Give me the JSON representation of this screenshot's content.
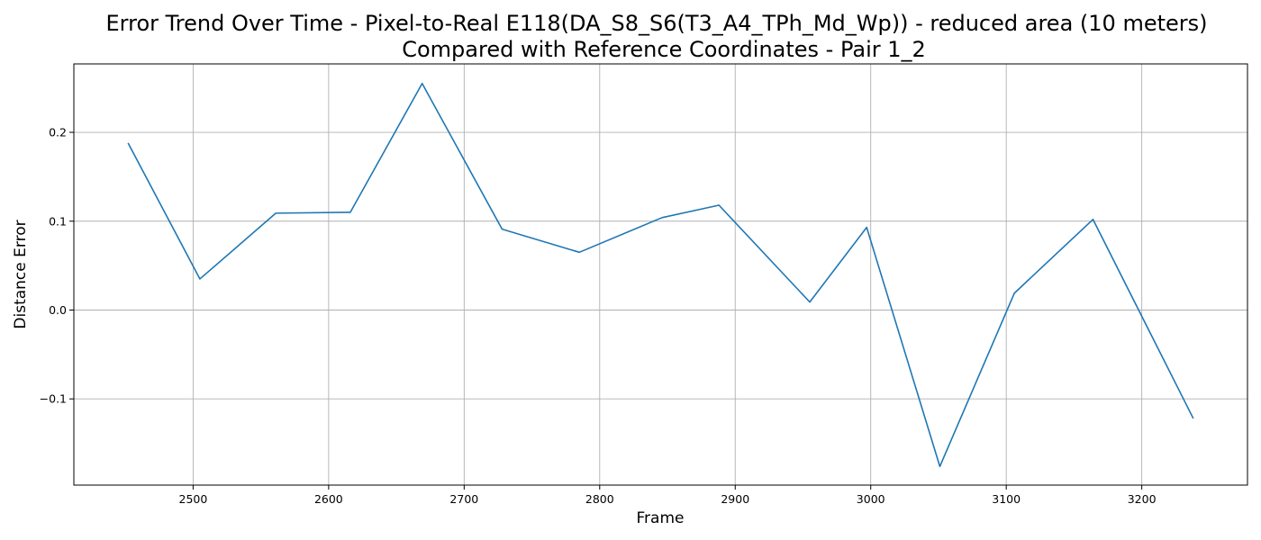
{
  "chart_data": {
    "type": "line",
    "title_lines": [
      "Error Trend Over Time - Pixel-to-Real E118(DA_S8_S6(T3_A4_TPh_Md_Wp)) - reduced area (10 meters)",
      "Compared with Reference Coordinates - Pair 1_2"
    ],
    "xlabel": "Frame",
    "ylabel": "Distance Error",
    "xlim": [
      2412,
      3278
    ],
    "ylim": [
      -0.197,
      0.277
    ],
    "x_ticks": [
      2500,
      2600,
      2700,
      2800,
      2900,
      3000,
      3100,
      3200
    ],
    "x_tick_labels": [
      "2500",
      "2600",
      "2700",
      "2800",
      "2900",
      "3000",
      "3100",
      "3200"
    ],
    "y_ticks": [
      -0.1,
      0.0,
      0.1,
      0.2
    ],
    "y_tick_labels": [
      "−0.1",
      "0.0",
      "0.1",
      "0.2"
    ],
    "grid": true,
    "colors": {
      "line": "#1f77b4",
      "grid": "#b0b0b0",
      "axes": "#000000"
    },
    "series": [
      {
        "x": [
          2452,
          2505,
          2561,
          2616,
          2669,
          2728,
          2785,
          2846,
          2888,
          2955,
          2997,
          3051,
          3106,
          3164,
          3238
        ],
        "y": [
          0.188,
          0.035,
          0.109,
          0.11,
          0.255,
          0.091,
          0.065,
          0.104,
          0.118,
          0.009,
          0.093,
          -0.176,
          0.019,
          0.102,
          -0.122
        ]
      }
    ]
  }
}
